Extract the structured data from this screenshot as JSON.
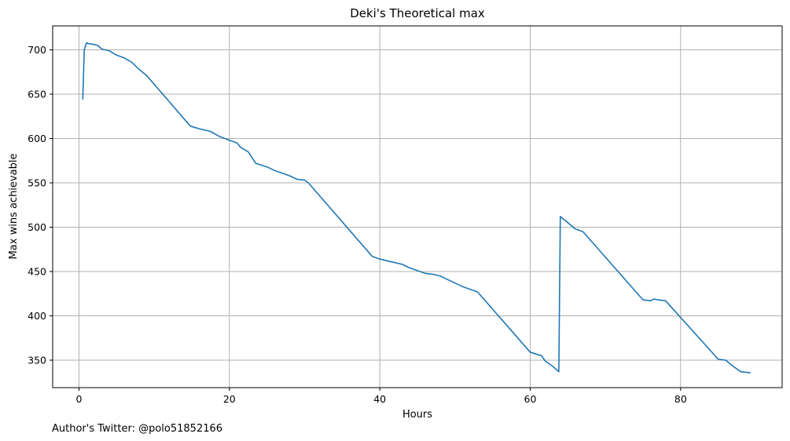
{
  "chart_data": {
    "type": "line",
    "title": "Deki's Theoretical max",
    "xlabel": "Hours",
    "ylabel": "Max wins achievable",
    "xlim": [
      -3.5,
      93.5
    ],
    "ylim": [
      319,
      727
    ],
    "xticks": [
      0,
      20,
      40,
      60,
      80
    ],
    "yticks": [
      350,
      400,
      450,
      500,
      550,
      600,
      650,
      700
    ],
    "grid": true,
    "series_color": "#1f77b4",
    "series": [
      {
        "x": [
          0.5,
          0.7,
          1.0,
          1.2,
          2.0,
          2.5,
          3.0,
          4.0,
          5.0,
          6.0,
          7.0,
          8.0,
          9.0,
          14.8,
          16.0,
          17.5,
          18.5,
          20.0,
          21.0,
          21.5,
          22.5,
          23.5,
          25.0,
          26.0,
          27.0,
          28.0,
          29.0,
          30.0,
          30.5,
          39.0,
          40.0,
          42.0,
          43.0,
          44.0,
          45.0,
          46.0,
          47.0,
          48.0,
          49.0,
          50.0,
          51.0,
          52.0,
          53.0,
          60.0,
          61.5,
          62.0,
          63.0,
          63.8,
          64.0,
          65.0,
          66.0,
          67.0,
          75.0,
          76.0,
          76.5,
          77.0,
          78.0,
          85.0,
          86.0,
          87.0,
          88.0,
          89.0,
          89.3
        ],
        "y": [
          644,
          700,
          708,
          707,
          706,
          705,
          701,
          699,
          694,
          691,
          686,
          678,
          671,
          614,
          611,
          608,
          603,
          598,
          595,
          590,
          585,
          572,
          568,
          564,
          561,
          558,
          554,
          553,
          550,
          467,
          464,
          460,
          458,
          454,
          451,
          448,
          447,
          445,
          441,
          437,
          433,
          430,
          427,
          359,
          355,
          349,
          343,
          337,
          512,
          505,
          498,
          495,
          418,
          417,
          419,
          418,
          417,
          351,
          350,
          343,
          337,
          336,
          336
        ]
      }
    ]
  },
  "footer": {
    "credit": "Author's Twitter: @polo51852166"
  }
}
